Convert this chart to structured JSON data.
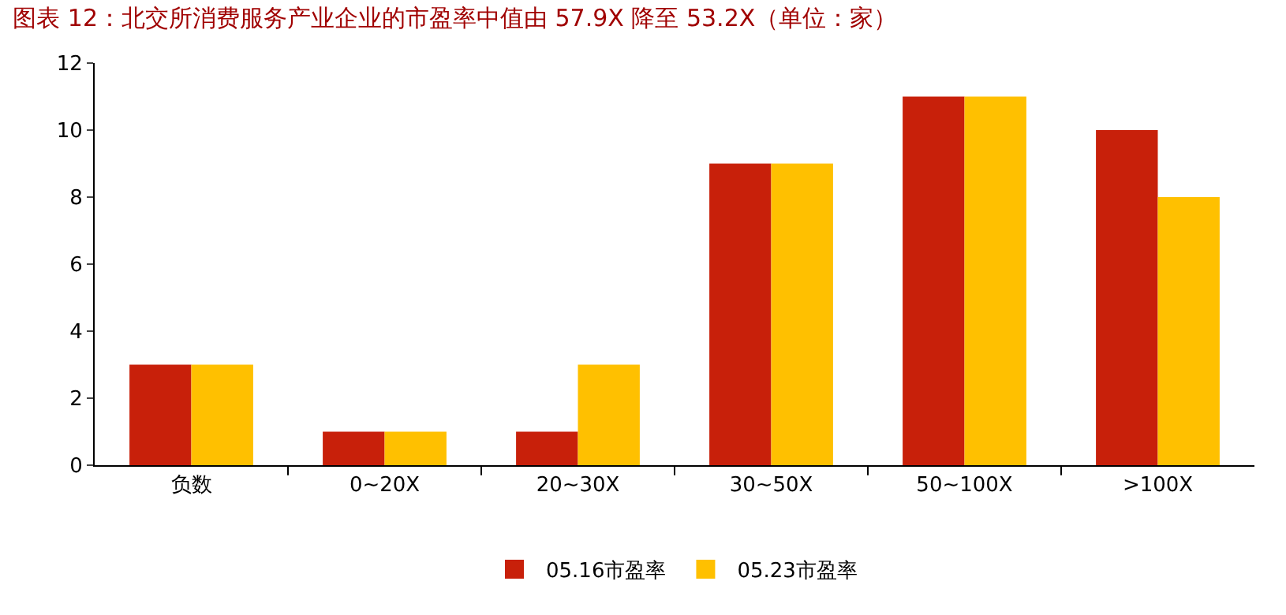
{
  "chart_data": {
    "type": "bar",
    "title": "图表 12：北交所消费服务产业企业的市盈率中值由 57.9X 降至 53.2X（单位：家）",
    "categories": [
      "负数",
      "0~20X",
      "20~30X",
      "30~50X",
      "50~100X",
      ">100X"
    ],
    "series": [
      {
        "name": "05.16市盈率",
        "color": "#c8200a",
        "values": [
          3,
          1,
          1,
          9,
          11,
          10
        ]
      },
      {
        "name": "05.23市盈率",
        "color": "#ffc000",
        "values": [
          3,
          1,
          3,
          9,
          11,
          8
        ]
      }
    ],
    "ylim": [
      0,
      12
    ],
    "yticks": [
      0,
      2,
      4,
      6,
      8,
      10,
      12
    ],
    "grid": false,
    "legend": "bottom"
  }
}
